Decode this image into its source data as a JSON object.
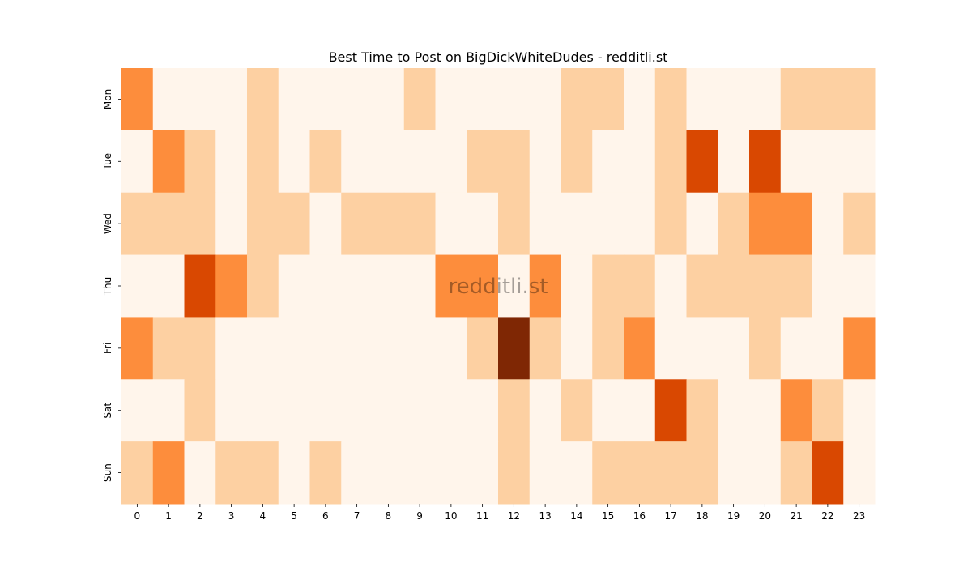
{
  "chart_data": {
    "type": "heatmap",
    "title": "Best Time to Post on BigDickWhiteDudes - redditli.st",
    "watermark": "redditli.st",
    "categories": [
      0,
      1,
      2,
      3,
      4,
      5,
      6,
      7,
      8,
      9,
      10,
      11,
      12,
      13,
      14,
      15,
      16,
      17,
      18,
      19,
      20,
      21,
      22,
      23
    ],
    "y_categories": [
      "Mon",
      "Tue",
      "Wed",
      "Thu",
      "Fri",
      "Sat",
      "Sun"
    ],
    "values": [
      [
        2,
        0,
        0,
        0,
        1,
        0,
        0,
        0,
        0,
        1,
        0,
        0,
        0,
        0,
        1,
        1,
        0,
        1,
        0,
        0,
        0,
        1,
        1,
        1
      ],
      [
        0,
        2,
        1,
        0,
        1,
        0,
        1,
        0,
        0,
        0,
        0,
        1,
        1,
        0,
        1,
        0,
        0,
        1,
        3,
        0,
        3,
        0,
        0,
        0
      ],
      [
        1,
        1,
        1,
        0,
        1,
        1,
        0,
        1,
        1,
        1,
        0,
        0,
        1,
        0,
        0,
        0,
        0,
        1,
        0,
        1,
        2,
        2,
        0,
        1
      ],
      [
        0,
        0,
        3,
        2,
        1,
        0,
        0,
        0,
        0,
        0,
        2,
        2,
        0,
        2,
        0,
        1,
        1,
        0,
        1,
        1,
        1,
        1,
        0,
        0
      ],
      [
        2,
        1,
        1,
        0,
        0,
        0,
        0,
        0,
        0,
        0,
        0,
        1,
        4,
        1,
        0,
        1,
        2,
        0,
        0,
        0,
        1,
        0,
        0,
        2
      ],
      [
        0,
        0,
        1,
        0,
        0,
        0,
        0,
        0,
        0,
        0,
        0,
        0,
        1,
        0,
        1,
        0,
        0,
        3,
        1,
        0,
        0,
        2,
        1,
        0
      ],
      [
        1,
        2,
        0,
        1,
        1,
        0,
        1,
        0,
        0,
        0,
        0,
        0,
        1,
        0,
        0,
        1,
        1,
        1,
        1,
        0,
        0,
        1,
        3,
        0
      ]
    ],
    "colormap": [
      "#fff5eb",
      "#fdd0a2",
      "#fd8d3c",
      "#d94801",
      "#7f2704"
    ],
    "zlim": [
      0,
      4
    ]
  }
}
